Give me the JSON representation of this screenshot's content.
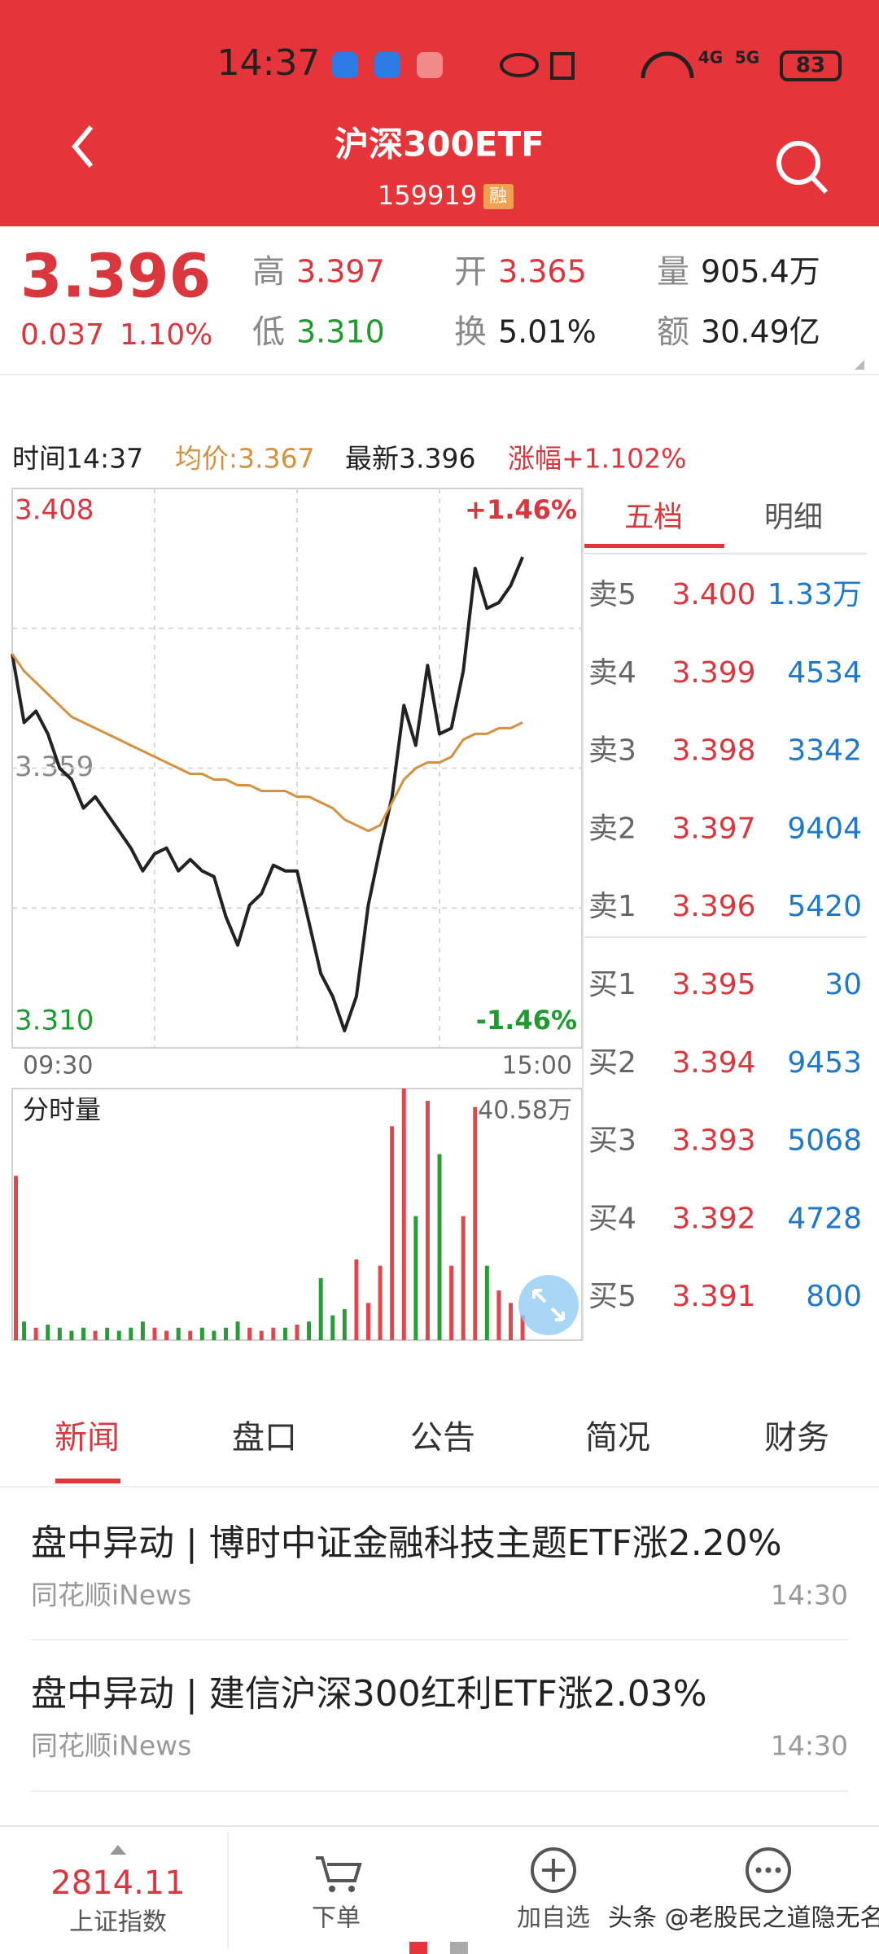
{
  "status": {
    "time": "14:37",
    "net1": "4G",
    "net2": "5G",
    "battery": "83"
  },
  "header": {
    "title": "沪深300ETF",
    "code": "159919",
    "badge": "融"
  },
  "quote": {
    "price": "3.396",
    "change": "0.037",
    "change_pct": "1.10%",
    "stats": [
      {
        "label": "高",
        "value": "3.397"
      },
      {
        "label": "开",
        "value": "3.365"
      },
      {
        "label": "量",
        "value": "905.4万"
      },
      {
        "label": "低",
        "value": "3.310"
      },
      {
        "label": "换",
        "value": "5.01%"
      },
      {
        "label": "额",
        "value": "30.49亿"
      }
    ]
  },
  "chart_info": {
    "time": "时间14:37",
    "avg": "均价:3.367",
    "latest": "最新3.396",
    "pct": "涨幅+1.102%"
  },
  "chart_data": [
    {
      "type": "line",
      "series": [
        {
          "color": "#222222",
          "values": [
            3.379,
            3.367,
            3.369,
            3.365,
            3.359,
            3.357,
            3.352,
            3.354,
            3.351,
            3.348,
            3.345,
            3.341,
            3.344,
            3.345,
            3.341,
            3.343,
            3.341,
            3.34,
            3.333,
            3.328,
            3.335,
            3.337,
            3.342,
            3.341,
            3.341,
            3.332,
            3.323,
            3.319,
            3.313,
            3.319,
            3.335,
            3.345,
            3.354,
            3.37,
            3.363,
            3.377,
            3.365,
            3.366,
            3.376,
            3.394,
            3.387,
            3.388,
            3.391,
            3.396,
            null,
            null,
            null,
            null,
            null
          ]
        },
        {
          "color": "#d4913f",
          "values": [
            3.379,
            3.376,
            3.374,
            3.372,
            3.37,
            3.368,
            3.367,
            3.366,
            3.365,
            3.364,
            3.363,
            3.362,
            3.361,
            3.36,
            3.359,
            3.358,
            3.358,
            3.357,
            3.357,
            3.356,
            3.356,
            3.355,
            3.355,
            3.355,
            3.354,
            3.354,
            3.353,
            3.352,
            3.35,
            3.349,
            3.348,
            3.349,
            3.353,
            3.357,
            3.359,
            3.36,
            3.36,
            3.361,
            3.364,
            3.365,
            3.365,
            3.366,
            3.366,
            3.367,
            null,
            null,
            null,
            null,
            null
          ]
        }
      ],
      "ylim": [
        3.31,
        3.408
      ],
      "yticks": [
        3.408,
        3.359,
        {
          "value": 3.31,
          "label": "3.310"
        }
      ],
      "y2lim": [
        -1.46,
        1.46
      ],
      "y2ticks": [
        {
          "value": 1.46,
          "label": "+1.46%"
        },
        {
          "value": -1.46,
          "label": "-1.46%"
        }
      ],
      "x_labels": [
        "09:30",
        "15:00"
      ],
      "grid": true
    },
    {
      "type": "bar",
      "title": "分时量",
      "values": [
        26.5,
        3,
        2,
        2.5,
        2,
        1.5,
        2,
        1.5,
        2,
        1.5,
        2,
        3,
        2,
        1.5,
        2,
        1.5,
        2,
        1.5,
        2,
        3,
        2,
        1.5,
        2,
        2,
        2.5,
        3,
        10,
        4,
        5,
        13,
        6,
        12,
        34.5,
        40.58,
        20,
        38.6,
        30,
        12,
        20,
        37.6,
        12,
        8,
        6,
        4,
        null,
        null,
        null,
        null,
        null
      ],
      "ylim": [
        0,
        40.58
      ],
      "yticks": [
        {
          "value": 40.58,
          "label": "40.58万"
        }
      ],
      "up_color": "#e0464c",
      "down_color": "#2b9b3a"
    }
  ],
  "order_book": {
    "tabs": [
      "五档",
      "明细"
    ],
    "rows": [
      {
        "label": "卖5",
        "price": "3.400",
        "volume": "1.33万"
      },
      {
        "label": "卖4",
        "price": "3.399",
        "volume": "4534"
      },
      {
        "label": "卖3",
        "price": "3.398",
        "volume": "3342"
      },
      {
        "label": "卖2",
        "price": "3.397",
        "volume": "9404"
      },
      {
        "label": "卖1",
        "price": "3.396",
        "volume": "5420"
      },
      {
        "label": "买1",
        "price": "3.395",
        "volume": "30"
      },
      {
        "label": "买2",
        "price": "3.394",
        "volume": "9453"
      },
      {
        "label": "买3",
        "price": "3.393",
        "volume": "5068"
      },
      {
        "label": "买4",
        "price": "3.392",
        "volume": "4728"
      },
      {
        "label": "买5",
        "price": "3.391",
        "volume": "800"
      }
    ]
  },
  "news_tabs": [
    "新闻",
    "盘口",
    "公告",
    "简况",
    "财务"
  ],
  "news": [
    {
      "title": "盘中异动 | 博时中证金融科技主题ETF涨2.20%",
      "source": "同花顺iNews",
      "time": "14:30"
    },
    {
      "title": "盘中异动 | 建信沪深300红利ETF涨2.03%",
      "source": "同花顺iNews",
      "time": "14:30"
    }
  ],
  "bottom_nav": {
    "index_value": "2814.11",
    "index_name": "上证指数",
    "order": "下单",
    "add": "加自选"
  },
  "watermark": "头条 @老股民之道隐无名"
}
